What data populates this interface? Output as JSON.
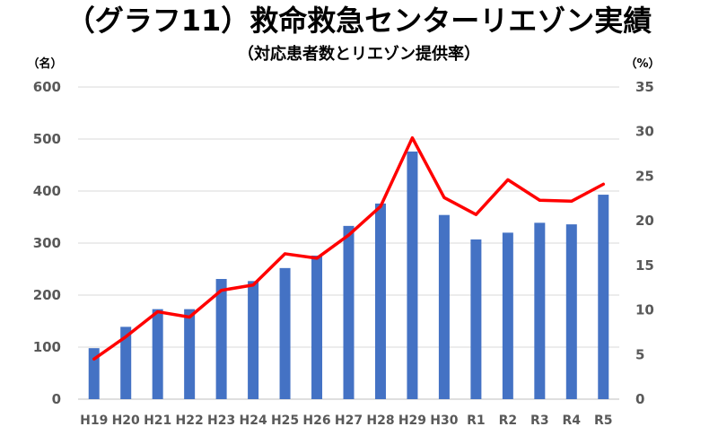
{
  "chart_data": {
    "type": "bar+line",
    "title": "（グラフ11）救命救急センターリエゾン実績",
    "subtitle": "（対応患者数とリエゾン提供率）",
    "y_left_unit": "（名）",
    "y_right_unit": "（%）",
    "ylim_left": [
      0,
      600
    ],
    "ylim_right": [
      0,
      35
    ],
    "y_left_ticks": [
      "0",
      "100",
      "200",
      "300",
      "400",
      "500",
      "600"
    ],
    "y_right_ticks": [
      "0",
      "5",
      "10",
      "15",
      "20",
      "25",
      "30",
      "35"
    ],
    "categories": [
      "H19",
      "H20",
      "H21",
      "H22",
      "H23",
      "H24",
      "H25",
      "H26",
      "H27",
      "H28",
      "H29",
      "H30",
      "R1",
      "R2",
      "R3",
      "R4",
      "R5"
    ],
    "series": [
      {
        "type": "bar",
        "axis": "left",
        "color": "#4472C4",
        "values": [
          98,
          139,
          173,
          173,
          231,
          227,
          252,
          276,
          333,
          376,
          476,
          354,
          307,
          320,
          339,
          336,
          393
        ]
      },
      {
        "type": "line",
        "axis": "right",
        "color": "#FF0000",
        "values": [
          4.5,
          7.0,
          9.8,
          9.2,
          12.2,
          12.8,
          16.3,
          15.8,
          18.4,
          21.6,
          29.3,
          22.6,
          20.7,
          24.6,
          22.3,
          22.2,
          24.1
        ]
      }
    ],
    "grid": true
  }
}
